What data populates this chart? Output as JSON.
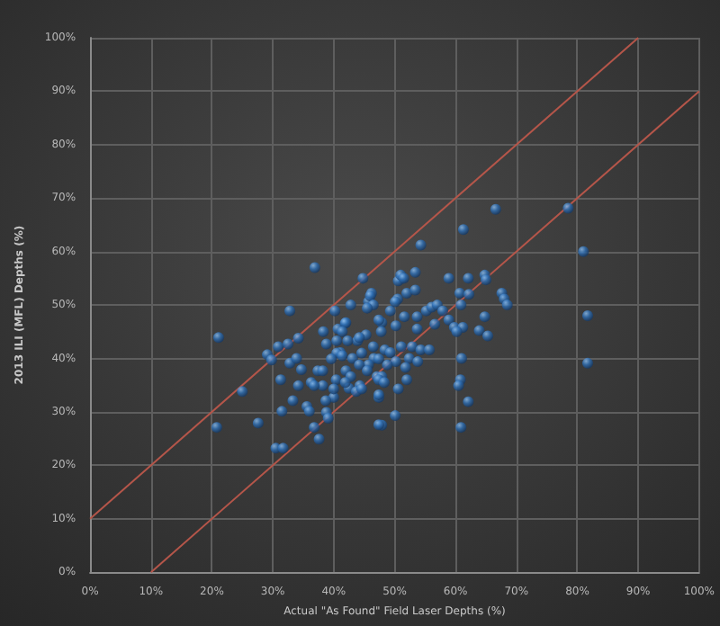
{
  "chart_data": {
    "type": "scatter",
    "xlabel": "Actual \"As Found\" Field Laser Depths (%)",
    "ylabel": "2013 ILI (MFL) Depths (%)",
    "xlim": [
      0,
      100
    ],
    "ylim": [
      0,
      100
    ],
    "xticks": [
      {
        "value": 0,
        "label": "0%"
      },
      {
        "value": 10,
        "label": "10%"
      },
      {
        "value": 20,
        "label": "20%"
      },
      {
        "value": 30,
        "label": "30%"
      },
      {
        "value": 40,
        "label": "40%"
      },
      {
        "value": 50,
        "label": "50%"
      },
      {
        "value": 60,
        "label": "60%"
      },
      {
        "value": 70,
        "label": "70%"
      },
      {
        "value": 80,
        "label": "80%"
      },
      {
        "value": 90,
        "label": "90%"
      },
      {
        "value": 100,
        "label": "100%"
      }
    ],
    "yticks": [
      {
        "value": 0,
        "label": "0%"
      },
      {
        "value": 10,
        "label": "10%"
      },
      {
        "value": 20,
        "label": "20%"
      },
      {
        "value": 30,
        "label": "30%"
      },
      {
        "value": 40,
        "label": "40%"
      },
      {
        "value": 50,
        "label": "50%"
      },
      {
        "value": 60,
        "label": "60%"
      },
      {
        "value": 70,
        "label": "70%"
      },
      {
        "value": 80,
        "label": "80%"
      },
      {
        "value": 90,
        "label": "90%"
      },
      {
        "value": 100,
        "label": "100%"
      }
    ],
    "grid": true,
    "series": [
      {
        "type": "line",
        "color": "#b5564a",
        "marker": "none",
        "x": [
          0,
          90
        ],
        "values": [
          10,
          100
        ]
      },
      {
        "type": "line",
        "color": "#b5564a",
        "marker": "none",
        "x": [
          10,
          100
        ],
        "values": [
          0,
          90
        ]
      },
      {
        "type": "scatter",
        "color": "#2e6fb5",
        "marker": "circle",
        "x": [
          21.1,
          20.8,
          25.0,
          27.6,
          30.5,
          31.7,
          29.1,
          29.8,
          30.9,
          31.3,
          31.5,
          32.8,
          32.5,
          32.8,
          33.3,
          34.2,
          33.9,
          34.7,
          34.2,
          35.6,
          36.0,
          36.9,
          36.8,
          37.6,
          36.3,
          37.4,
          38.2,
          38.3,
          38.8,
          38.8,
          39.1,
          40.0,
          40.4,
          40.2,
          40.7,
          41.1,
          42.0,
          42.0,
          42.8,
          42.5,
          43.1,
          44.3,
          43.9,
          44.8,
          45.7,
          46.2,
          45.3,
          46.6,
          45.7,
          47.1,
          66.6,
          78.5,
          61.3,
          81.0,
          54.3,
          81.7,
          81.7,
          51.1,
          50.6,
          53.4,
          58.9,
          62.1,
          64.8,
          65.0,
          52.0,
          53.4,
          60.7,
          62.2,
          67.6,
          68.0,
          68.5,
          50.5,
          55.2,
          56.1,
          57.0,
          57.9,
          60.9,
          64.8,
          49.3,
          51.6,
          53.7,
          58.9,
          59.8,
          61.2,
          60.2,
          63.9,
          65.3,
          53.7,
          56.6,
          50.2,
          47.9,
          51.1,
          52.9,
          54.3,
          55.7,
          48.4,
          49.3,
          52.4,
          53.8,
          50.2,
          48.8,
          51.8,
          47.9,
          52.0,
          61.0,
          60.8,
          60.5,
          62.1,
          60.9,
          47.9,
          47.4,
          46.0,
          46.5,
          45.5,
          50.1,
          51.0,
          51.5,
          47.4,
          47.8,
          41.9,
          41.4,
          40.5,
          42.3,
          44.2,
          44.6,
          46.5,
          47.4,
          40.5,
          41.4,
          39.6,
          44.2,
          45.5,
          38.2,
          42.8,
          41.9,
          47.4,
          48.3,
          43.7,
          44.6,
          36.8,
          40.0,
          47.4,
          38.7,
          50.6,
          47.4,
          50.1
        ],
        "values": [
          43.9,
          27.1,
          33.8,
          27.9,
          23.2,
          23.2,
          40.7,
          39.7,
          42.2,
          36.0,
          30.1,
          48.9,
          42.7,
          39.1,
          32.1,
          43.8,
          40.0,
          37.9,
          34.9,
          31.0,
          30.1,
          57.0,
          27.1,
          24.9,
          35.5,
          37.7,
          34.9,
          45.0,
          42.7,
          29.9,
          28.8,
          32.7,
          36.0,
          48.9,
          45.5,
          41.1,
          46.7,
          37.7,
          50.0,
          34.4,
          40.0,
          34.9,
          43.3,
          55.0,
          50.6,
          52.2,
          44.4,
          40.0,
          38.8,
          36.6,
          67.9,
          68.1,
          64.1,
          60.0,
          61.2,
          48.0,
          39.1,
          55.0,
          54.5,
          56.1,
          55.0,
          55.0,
          55.6,
          54.7,
          52.2,
          52.8,
          52.2,
          52.0,
          52.2,
          51.1,
          50.0,
          51.1,
          48.9,
          49.6,
          50.0,
          48.9,
          50.0,
          47.8,
          48.9,
          47.8,
          47.8,
          47.2,
          45.8,
          45.8,
          45.0,
          45.2,
          44.2,
          45.5,
          46.4,
          46.1,
          46.7,
          42.2,
          42.2,
          41.6,
          41.6,
          41.6,
          41.1,
          40.0,
          39.4,
          39.4,
          38.8,
          38.3,
          36.6,
          36.0,
          40.0,
          36.0,
          34.9,
          31.9,
          27.1,
          27.5,
          32.7,
          51.7,
          50.0,
          49.4,
          50.6,
          55.6,
          55.0,
          47.2,
          45.0,
          46.6,
          45.0,
          43.3,
          43.3,
          43.9,
          41.0,
          42.2,
          39.9,
          41.0,
          40.5,
          39.9,
          38.8,
          37.7,
          37.7,
          36.6,
          35.5,
          36.0,
          35.5,
          33.8,
          34.3,
          34.9,
          34.3,
          33.2,
          32.1,
          34.3,
          27.6,
          29.3
        ]
      }
    ]
  }
}
